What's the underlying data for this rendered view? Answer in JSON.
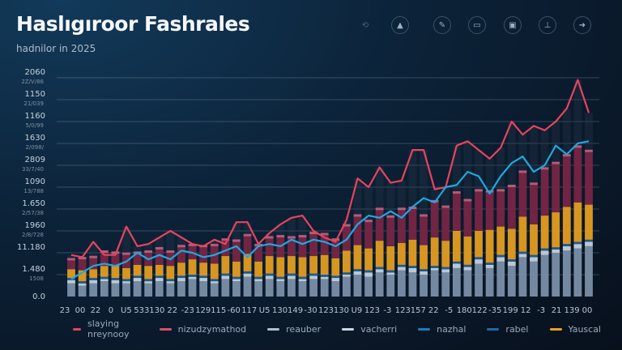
{
  "header": {
    "title": "Haslıgıroor Fashrales",
    "subtitle": "hadnilor in 2025"
  },
  "toolbar": {
    "icons": [
      "refresh-icon",
      "alert-icon",
      "edit-icon",
      "card-icon",
      "save-icon",
      "stamp-icon",
      "arrow-icon"
    ]
  },
  "chart_data": {
    "type": "bar",
    "subtype": "stacked bar with line overlays",
    "title": "Haslıgıroor Fashrales",
    "subtitle": "hadnilor in 2025",
    "grid": true,
    "legend_position": "bottom",
    "ylim": [
      0,
      10
    ],
    "y_tick_labels": [
      {
        "label": "0.0",
        "sub": ""
      },
      {
        "label": "1.480",
        "sub": "1508"
      },
      {
        "label": "11.180",
        "sub": ""
      },
      {
        "label": "1960",
        "sub": "2/8/728"
      },
      {
        "label": "1.650",
        "sub": "2/57/38"
      },
      {
        "label": "1090",
        "sub": "13/788"
      },
      {
        "label": "2809",
        "sub": "33/7/40"
      },
      {
        "label": "1630",
        "sub": "2/098/"
      },
      {
        "label": "1160",
        "sub": "5/0/99"
      },
      {
        "label": "1150",
        "sub": "21/039"
      },
      {
        "label": "2060",
        "sub": "2Z/V/86"
      }
    ],
    "x_tick_labels": [
      "23",
      "00",
      "22",
      "0",
      "U5",
      "533",
      "130",
      "22",
      "-23",
      "129",
      "115",
      "-60",
      "117",
      "U5",
      "130",
      "149",
      "-30",
      "123",
      "130",
      "U9",
      "123",
      "-3",
      "123",
      "157",
      "22",
      "-5",
      "180",
      "122",
      "-35",
      "199",
      "12",
      "-3",
      "21",
      "139",
      "00"
    ],
    "lines": [
      {
        "name": "slaying nreynooy",
        "color": "#e8435f",
        "values": [
          1.9,
          1.8,
          2.5,
          1.9,
          1.9,
          3.2,
          2.3,
          2.4,
          2.7,
          3.0,
          2.7,
          2.4,
          2.3,
          2.6,
          2.4,
          3.4,
          3.4,
          2.4,
          2.9,
          3.3,
          3.6,
          3.7,
          3.0,
          2.7,
          2.5,
          3.5,
          5.4,
          5.0,
          5.9,
          5.2,
          5.3,
          6.7,
          6.7,
          4.9,
          5.0,
          6.9,
          7.1,
          6.7,
          6.3,
          6.8,
          8.0,
          7.4,
          7.8,
          7.6,
          8.0,
          8.6,
          9.9,
          8.4
        ]
      },
      {
        "name": "nazhal",
        "color": "#1fa8e0",
        "values": [
          0.8,
          1.1,
          1.4,
          1.5,
          1.4,
          1.6,
          2.0,
          1.7,
          1.9,
          1.7,
          2.1,
          2.0,
          1.8,
          1.9,
          2.1,
          2.3,
          1.8,
          2.3,
          2.4,
          2.3,
          2.6,
          2.4,
          2.6,
          2.5,
          2.3,
          2.6,
          3.3,
          3.7,
          3.6,
          3.9,
          3.6,
          4.1,
          4.5,
          4.3,
          5.0,
          5.1,
          5.7,
          5.5,
          4.7,
          5.5,
          6.1,
          6.4,
          5.7,
          6.0,
          6.9,
          6.5,
          7.0,
          7.1
        ]
      }
    ],
    "stacks": [
      {
        "name": "reauber",
        "color": "#7d93aa",
        "values": [
          0.6,
          0.5,
          0.6,
          0.7,
          0.6,
          0.6,
          0.7,
          0.6,
          0.7,
          0.6,
          0.7,
          0.8,
          0.7,
          0.6,
          0.8,
          0.7,
          0.9,
          0.7,
          0.8,
          0.7,
          0.8,
          0.7,
          0.8,
          0.8,
          0.7,
          0.9,
          1.0,
          0.9,
          1.1,
          1.0,
          1.2,
          1.1,
          1.0,
          1.2,
          1.1,
          1.3,
          1.2,
          1.5,
          1.3,
          1.6,
          1.4,
          1.8,
          1.6,
          1.9,
          2.0,
          2.1,
          2.2,
          2.3
        ]
      },
      {
        "name": "vacherri",
        "color": "#c9d6e3",
        "values": [
          0.15,
          0.1,
          0.15,
          0.1,
          0.15,
          0.1,
          0.15,
          0.1,
          0.15,
          0.1,
          0.15,
          0.1,
          0.15,
          0.1,
          0.15,
          0.1,
          0.15,
          0.1,
          0.15,
          0.1,
          0.15,
          0.1,
          0.15,
          0.1,
          0.15,
          0.1,
          0.15,
          0.2,
          0.15,
          0.1,
          0.15,
          0.2,
          0.15,
          0.1,
          0.15,
          0.2,
          0.15,
          0.2,
          0.15,
          0.2,
          0.2,
          0.15,
          0.2,
          0.2,
          0.15,
          0.2,
          0.2,
          0.2
        ]
      },
      {
        "name": "rabel",
        "color": "#1f5f9a",
        "values": [
          0.1,
          0.1,
          0.1,
          0.1,
          0.1,
          0.1,
          0.1,
          0.1,
          0.1,
          0.1,
          0.1,
          0.1,
          0.1,
          0.1,
          0.1,
          0.1,
          0.1,
          0.1,
          0.1,
          0.1,
          0.1,
          0.1,
          0.1,
          0.1,
          0.1,
          0.1,
          0.1,
          0.1,
          0.1,
          0.1,
          0.1,
          0.1,
          0.1,
          0.1,
          0.1,
          0.1,
          0.1,
          0.1,
          0.1,
          0.1,
          0.1,
          0.1,
          0.1,
          0.1,
          0.1,
          0.1,
          0.1,
          0.1
        ]
      },
      {
        "name": "Yauscal",
        "color": "#e8a020",
        "values": [
          0.4,
          0.5,
          0.4,
          0.5,
          0.6,
          0.5,
          0.5,
          0.6,
          0.5,
          0.6,
          0.6,
          0.7,
          0.6,
          0.7,
          0.8,
          0.7,
          0.8,
          0.7,
          0.8,
          0.9,
          0.8,
          0.9,
          0.8,
          0.9,
          0.8,
          1.0,
          1.1,
          1.0,
          1.2,
          1.1,
          1.0,
          1.2,
          1.1,
          1.3,
          1.2,
          1.4,
          1.3,
          1.2,
          1.5,
          1.3,
          1.4,
          1.6,
          1.4,
          1.5,
          1.6,
          1.7,
          1.8,
          1.6
        ]
      },
      {
        "name": "nizudzymathod",
        "color": "#7a2544",
        "values": [
          0.4,
          0.5,
          0.5,
          0.6,
          0.5,
          0.6,
          0.5,
          0.6,
          0.7,
          0.6,
          0.7,
          0.6,
          0.7,
          0.8,
          0.7,
          0.9,
          0.8,
          0.7,
          0.8,
          0.9,
          0.8,
          0.9,
          1.0,
          0.9,
          0.8,
          1.1,
          1.3,
          1.2,
          1.4,
          1.3,
          1.5,
          1.4,
          1.3,
          1.6,
          1.5,
          1.7,
          1.6,
          1.8,
          1.7,
          1.6,
          1.9,
          2.0,
          1.8,
          2.1,
          2.2,
          2.3,
          2.5,
          2.4
        ]
      }
    ],
    "legend": [
      {
        "label": "slaying nreynooy",
        "color": "#e8435f"
      },
      {
        "label": "nizudzymathod",
        "color": "#d9506a"
      },
      {
        "label": "reauber",
        "color": "#a9bfd6"
      },
      {
        "label": "vacherri",
        "color": "#c9d6e3"
      },
      {
        "label": "nazhal",
        "color": "#1f7cc0"
      },
      {
        "label": "rabel",
        "color": "#1f6aa8"
      },
      {
        "label": "Yauscal",
        "color": "#e8a020"
      }
    ]
  }
}
